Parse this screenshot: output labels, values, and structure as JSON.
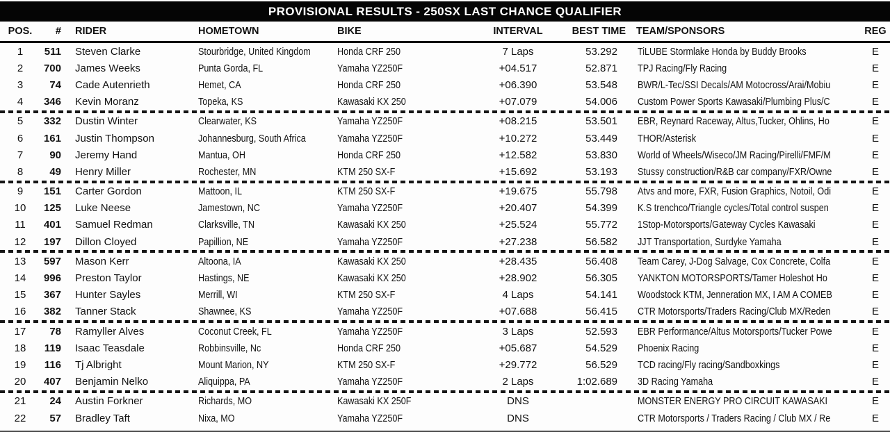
{
  "title": "PROVISIONAL RESULTS - 250SX LAST CHANCE QUALIFIER",
  "columns": {
    "pos": "POS.",
    "num": "#",
    "rider": "RIDER",
    "hometown": "HOMETOWN",
    "bike": "BIKE",
    "interval": "INTERVAL",
    "best_time": "BEST TIME",
    "team": "TEAM/SPONSORS",
    "reg": "REG"
  },
  "group_sizes": [
    4,
    4,
    4,
    4,
    4,
    2
  ],
  "rows": [
    {
      "pos": "1",
      "num": "511",
      "rider": "Steven Clarke",
      "hometown": "Stourbridge, United Kingdom",
      "bike": "Honda CRF 250",
      "interval": "7 Laps",
      "best_time": "53.292",
      "team": "TiLUBE Stormlake Honda by Buddy Brooks",
      "reg": "E"
    },
    {
      "pos": "2",
      "num": "700",
      "rider": "James Weeks",
      "hometown": "Punta Gorda, FL",
      "bike": "Yamaha YZ250F",
      "interval": "+04.517",
      "best_time": "52.871",
      "team": "TPJ Racing/Fly Racing",
      "reg": "E"
    },
    {
      "pos": "3",
      "num": "74",
      "rider": "Cade Autenrieth",
      "hometown": "Hemet, CA",
      "bike": "Honda CRF 250",
      "interval": "+06.390",
      "best_time": "53.548",
      "team": "BWR/L-Tec/SSI Decals/AM Motocross/Arai/Mobiu",
      "reg": "E"
    },
    {
      "pos": "4",
      "num": "346",
      "rider": "Kevin Moranz",
      "hometown": "Topeka, KS",
      "bike": "Kawasaki KX 250",
      "interval": "+07.079",
      "best_time": "54.006",
      "team": "Custom Power Sports Kawasaki/Plumbing Plus/C",
      "reg": "E"
    },
    {
      "pos": "5",
      "num": "332",
      "rider": "Dustin Winter",
      "hometown": "Clearwater, KS",
      "bike": "Yamaha YZ250F",
      "interval": "+08.215",
      "best_time": "53.501",
      "team": "EBR, Reynard Raceway, Altus,Tucker, Ohlins, Ho",
      "reg": "E"
    },
    {
      "pos": "6",
      "num": "161",
      "rider": "Justin Thompson",
      "hometown": "Johannesburg, South Africa",
      "bike": "Yamaha YZ250F",
      "interval": "+10.272",
      "best_time": "53.449",
      "team": "THOR/Asterisk",
      "reg": "E"
    },
    {
      "pos": "7",
      "num": "90",
      "rider": "Jeremy Hand",
      "hometown": "Mantua, OH",
      "bike": "Honda CRF 250",
      "interval": "+12.582",
      "best_time": "53.830",
      "team": "World of Wheels/Wiseco/JM Racing/Pirelli/FMF/M",
      "reg": "E"
    },
    {
      "pos": "8",
      "num": "49",
      "rider": "Henry Miller",
      "hometown": "Rochester, MN",
      "bike": "KTM 250 SX-F",
      "interval": "+15.692",
      "best_time": "53.193",
      "team": "Stussy construction/R&B car company/FXR/Owne",
      "reg": "E"
    },
    {
      "pos": "9",
      "num": "151",
      "rider": "Carter Gordon",
      "hometown": "Mattoon, IL",
      "bike": "KTM 250 SX-F",
      "interval": "+19.675",
      "best_time": "55.798",
      "team": "Atvs and more, FXR, Fusion Graphics, Notoil, Odi",
      "reg": "E"
    },
    {
      "pos": "10",
      "num": "125",
      "rider": "Luke Neese",
      "hometown": "Jamestown, NC",
      "bike": "Yamaha YZ250F",
      "interval": "+20.407",
      "best_time": "54.399",
      "team": "K.S trenchco/Triangle cycles/Total control suspen",
      "reg": "E"
    },
    {
      "pos": "11",
      "num": "401",
      "rider": "Samuel Redman",
      "hometown": "Clarksville, TN",
      "bike": "Kawasaki KX 250",
      "interval": "+25.524",
      "best_time": "55.772",
      "team": "1Stop-Motorsports/Gateway Cycles Kawasaki",
      "reg": "E"
    },
    {
      "pos": "12",
      "num": "197",
      "rider": "Dillon Cloyed",
      "hometown": "Papillion, NE",
      "bike": "Yamaha YZ250F",
      "interval": "+27.238",
      "best_time": "56.582",
      "team": "JJT Transportation, Surdyke Yamaha",
      "reg": "E"
    },
    {
      "pos": "13",
      "num": "597",
      "rider": "Mason Kerr",
      "hometown": "Altoona, IA",
      "bike": "Kawasaki KX 250",
      "interval": "+28.435",
      "best_time": "56.408",
      "team": "Team Carey, J-Dog Salvage, Cox Concrete, Colfa",
      "reg": "E"
    },
    {
      "pos": "14",
      "num": "996",
      "rider": "Preston Taylor",
      "hometown": "Hastings, NE",
      "bike": "Kawasaki KX 250",
      "interval": "+28.902",
      "best_time": "56.305",
      "team": "YANKTON MOTORSPORTS/Tamer Holeshot Ho",
      "reg": "E"
    },
    {
      "pos": "15",
      "num": "367",
      "rider": "Hunter Sayles",
      "hometown": "Merrill, WI",
      "bike": "KTM 250 SX-F",
      "interval": "4 Laps",
      "best_time": "54.141",
      "team": "Woodstock KTM, Jenneration MX, I AM A COMEB",
      "reg": "E"
    },
    {
      "pos": "16",
      "num": "382",
      "rider": "Tanner Stack",
      "hometown": "Shawnee, KS",
      "bike": "Yamaha YZ250F",
      "interval": "+07.688",
      "best_time": "56.415",
      "team": "CTR Motorsports/Traders Racing/Club MX/Reden",
      "reg": "E"
    },
    {
      "pos": "17",
      "num": "78",
      "rider": "Ramyller Alves",
      "hometown": "Coconut Creek, FL",
      "bike": "Yamaha YZ250F",
      "interval": "3 Laps",
      "best_time": "52.593",
      "team": "EBR Performance/Altus Motorsports/Tucker Powe",
      "reg": "E"
    },
    {
      "pos": "18",
      "num": "119",
      "rider": "Isaac Teasdale",
      "hometown": "Robbinsville, Nc",
      "bike": "Honda CRF 250",
      "interval": "+05.687",
      "best_time": "54.529",
      "team": "Phoenix Racing",
      "reg": "E"
    },
    {
      "pos": "19",
      "num": "116",
      "rider": "Tj Albright",
      "hometown": "Mount Marion, NY",
      "bike": "KTM 250 SX-F",
      "interval": "+29.772",
      "best_time": "56.529",
      "team": "TCD racing/Fly racing/Sandboxkings",
      "reg": "E"
    },
    {
      "pos": "20",
      "num": "407",
      "rider": "Benjamin Nelko",
      "hometown": "Aliquippa, PA",
      "bike": "Yamaha YZ250F",
      "interval": "2 Laps",
      "best_time": "1:02.689",
      "team": "3D Racing Yamaha",
      "reg": "E"
    },
    {
      "pos": "21",
      "num": "24",
      "rider": "Austin Forkner",
      "hometown": "Richards, MO",
      "bike": "Kawasaki KX 250F",
      "interval": "DNS",
      "best_time": "",
      "team": "MONSTER ENERGY PRO CIRCUIT KAWASAKI",
      "reg": "E"
    },
    {
      "pos": "22",
      "num": "57",
      "rider": "Bradley Taft",
      "hometown": "Nixa, MO",
      "bike": "Yamaha YZ250F",
      "interval": "DNS",
      "best_time": "",
      "team": "CTR Motorsports / Traders Racing / Club MX / Re",
      "reg": "E"
    }
  ]
}
